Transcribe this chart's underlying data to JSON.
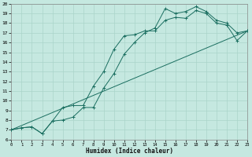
{
  "xlabel": "Humidex (Indice chaleur)",
  "bg_color": "#c5e8e0",
  "grid_color": "#aad4ca",
  "line_color": "#1a6e60",
  "xlim": [
    0,
    23
  ],
  "ylim": [
    6,
    20
  ],
  "xticks": [
    0,
    1,
    2,
    3,
    4,
    5,
    6,
    7,
    8,
    9,
    10,
    11,
    12,
    13,
    14,
    15,
    16,
    17,
    18,
    19,
    20,
    21,
    22,
    23
  ],
  "yticks": [
    6,
    7,
    8,
    9,
    10,
    11,
    12,
    13,
    14,
    15,
    16,
    17,
    18,
    19,
    20
  ],
  "curve1_x": [
    0,
    1,
    2,
    3,
    4,
    5,
    6,
    7,
    8,
    9,
    10,
    11,
    12,
    13,
    14,
    15,
    16,
    17,
    18,
    19,
    20,
    21,
    22,
    23
  ],
  "curve1_y": [
    7.0,
    7.2,
    7.3,
    6.6,
    7.9,
    9.3,
    9.5,
    9.5,
    11.5,
    13.0,
    15.3,
    16.7,
    16.8,
    17.2,
    17.2,
    18.3,
    18.6,
    18.5,
    19.3,
    19.0,
    18.0,
    17.8,
    16.2,
    17.2
  ],
  "curve2_x": [
    0,
    1,
    2,
    3,
    4,
    5,
    6,
    7,
    8,
    9,
    10,
    11,
    12,
    13,
    14,
    15,
    16,
    17,
    18,
    19,
    20,
    21,
    22,
    23
  ],
  "curve2_y": [
    7.0,
    7.2,
    7.3,
    6.6,
    7.9,
    8.0,
    8.3,
    9.3,
    9.3,
    11.3,
    12.8,
    14.8,
    16.0,
    17.0,
    17.5,
    19.5,
    19.0,
    19.2,
    19.7,
    19.2,
    18.3,
    18.0,
    17.0,
    17.2
  ],
  "line_x": [
    0,
    23
  ],
  "line_y": [
    7.0,
    17.2
  ]
}
